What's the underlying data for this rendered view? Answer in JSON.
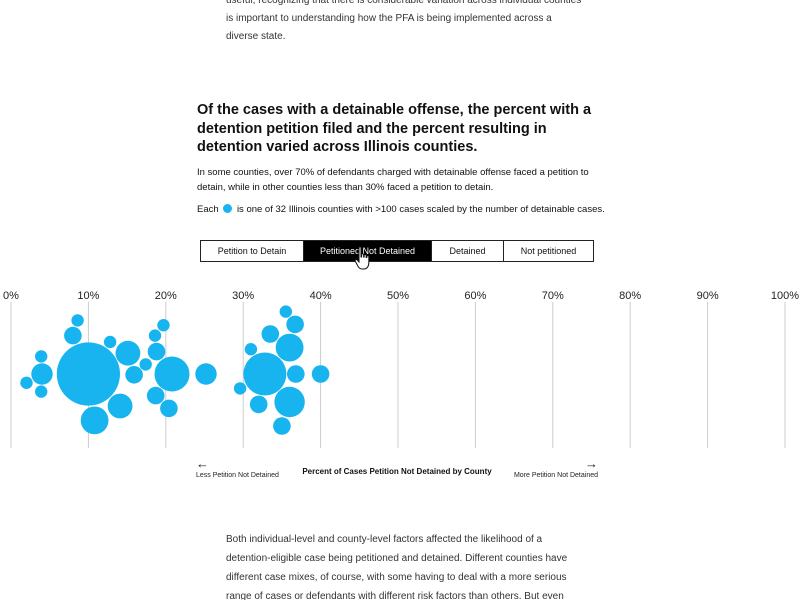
{
  "intro": {
    "line1": "useful, recognizing that there is considerable variation across individual counties",
    "line2": "is important to understanding how the PFA is being implemented across a",
    "line3": "diverse state."
  },
  "section": {
    "title": "Of the cases with a detainable offense, the percent with a detention petition filed and the percent resulting in detention varied across Illinois counties.",
    "description": "In some counties, over 70% of defendants charged with detainable offense faced a petition to detain, while in other counties less than 30% faced a petition to detain.",
    "legend_prefix": "Each",
    "legend_suffix": "is one of 32 Illinois counties with >100 cases scaled by the number of detainable cases."
  },
  "tabs": [
    {
      "label": "Petition to Detain",
      "active": false
    },
    {
      "label": "Petitioned Not Detained",
      "active": true
    },
    {
      "label": "Detained",
      "active": false
    },
    {
      "label": "Not petitioned",
      "active": false
    }
  ],
  "colors": {
    "bubble": "#18b4f0",
    "gridline": "#cccccc",
    "active_tab_bg": "#000000"
  },
  "axis_caption": {
    "title": "Percent of Cases Petition Not Detained by County",
    "left_label": "Less Petition Not Detained",
    "right_label": "More Petition Not Detained",
    "left_arrow": "←",
    "right_arrow": "→"
  },
  "chart_data": {
    "type": "scatter",
    "title": "Percent of Cases Petition Not Detained by County",
    "xlabel": "Percent of Cases Petition Not Detained by County",
    "xlim": [
      0,
      100
    ],
    "x_ticks": [
      "0%",
      "10%",
      "20%",
      "30%",
      "40%",
      "50%",
      "60%",
      "70%",
      "80%",
      "90%",
      "100%"
    ],
    "grid": true,
    "encoding": "beeswarm; bubble area scaled by the number of detainable cases",
    "points": [
      {
        "x": 2.0,
        "size": 1
      },
      {
        "x": 3.9,
        "size": 1
      },
      {
        "x": 3.9,
        "size": 1
      },
      {
        "x": 4.0,
        "size": 3
      },
      {
        "x": 8.0,
        "size": 2
      },
      {
        "x": 8.6,
        "size": 1
      },
      {
        "x": 10.0,
        "size": 26
      },
      {
        "x": 10.8,
        "size": 5
      },
      {
        "x": 12.8,
        "size": 1
      },
      {
        "x": 14.1,
        "size": 4
      },
      {
        "x": 15.1,
        "size": 4
      },
      {
        "x": 15.9,
        "size": 2
      },
      {
        "x": 17.4,
        "size": 1
      },
      {
        "x": 18.6,
        "size": 1
      },
      {
        "x": 18.7,
        "size": 2
      },
      {
        "x": 18.8,
        "size": 2
      },
      {
        "x": 19.7,
        "size": 1
      },
      {
        "x": 20.4,
        "size": 2
      },
      {
        "x": 20.8,
        "size": 8
      },
      {
        "x": 25.2,
        "size": 3
      },
      {
        "x": 29.6,
        "size": 1
      },
      {
        "x": 31.0,
        "size": 1
      },
      {
        "x": 32.0,
        "size": 2
      },
      {
        "x": 32.8,
        "size": 12
      },
      {
        "x": 33.5,
        "size": 2
      },
      {
        "x": 35.0,
        "size": 2
      },
      {
        "x": 35.5,
        "size": 1
      },
      {
        "x": 36.0,
        "size": 6
      },
      {
        "x": 36.0,
        "size": 5
      },
      {
        "x": 36.7,
        "size": 2
      },
      {
        "x": 36.8,
        "size": 2
      },
      {
        "x": 40.0,
        "size": 2
      }
    ]
  },
  "body": {
    "text": "Both individual-level and county-level factors affected the likelihood of a detention-eligible case being petitioned and detained. Different counties have different case mixes, of course, with some having to deal with a more serious range of cases or defendants with different risk factors than others. But even"
  }
}
